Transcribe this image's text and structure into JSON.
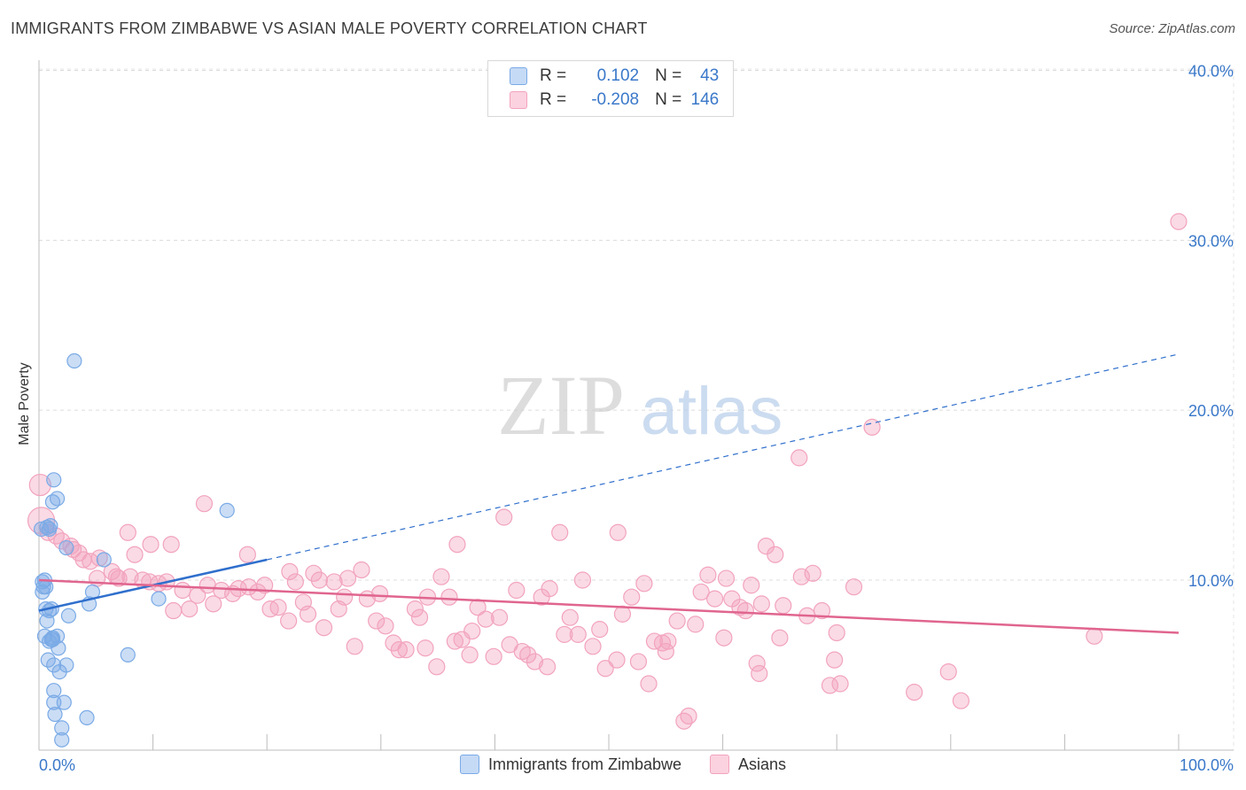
{
  "title": "IMMIGRANTS FROM ZIMBABWE VS ASIAN MALE POVERTY CORRELATION CHART",
  "source": "Source: ZipAtlas.com",
  "watermark": {
    "zip": "ZIP",
    "atlas": "atlas"
  },
  "legend": {
    "rows": [
      {
        "r_label": "R =",
        "r_value": "0.102",
        "n_label": "N =",
        "n_value": "43"
      },
      {
        "r_label": "R =",
        "r_value": "-0.208",
        "n_label": "N =",
        "n_value": "146"
      }
    ]
  },
  "chart_data": {
    "type": "scatter",
    "title": "IMMIGRANTS FROM ZIMBABWE VS ASIAN MALE POVERTY CORRELATION CHART",
    "xlabel": "",
    "ylabel": "Male Poverty",
    "xlim": [
      0,
      100
    ],
    "ylim": [
      0,
      42
    ],
    "x_tick_labels": [
      "0.0%",
      "100.0%"
    ],
    "y_ticks": [
      10,
      20,
      30,
      40
    ],
    "y_tick_labels": [
      "10.0%",
      "20.0%",
      "30.0%",
      "40.0%"
    ],
    "grid": true,
    "legend_position": "bottom",
    "colors": {
      "zimbabwe": "#7aaae6",
      "zimbabwe_line": "#2f6fcc",
      "asians": "#f2a3bd",
      "asians_line": "#e0658f",
      "axis_text": "#3a78c9"
    },
    "series": [
      {
        "name": "Immigrants from Zimbabwe",
        "trend": {
          "x0": 0,
          "y0": 8.2,
          "x1": 20,
          "y1": 11.2,
          "dashed_to_x": 100,
          "dashed_to_y": 23.3
        },
        "points": [
          [
            3.1,
            22.9
          ],
          [
            16.5,
            14.1
          ],
          [
            1.3,
            15.9
          ],
          [
            1.6,
            14.8
          ],
          [
            1.2,
            14.6
          ],
          [
            0.7,
            13.1
          ],
          [
            0.9,
            13.0
          ],
          [
            0.2,
            13.0
          ],
          [
            2.4,
            11.9
          ],
          [
            5.7,
            11.2
          ],
          [
            0.5,
            10.0
          ],
          [
            0.4,
            9.6
          ],
          [
            0.3,
            9.3
          ],
          [
            0.6,
            9.6
          ],
          [
            4.7,
            9.3
          ],
          [
            10.5,
            8.9
          ],
          [
            4.4,
            8.6
          ],
          [
            0.6,
            8.3
          ],
          [
            1.1,
            8.3
          ],
          [
            2.6,
            7.9
          ],
          [
            0.7,
            7.6
          ],
          [
            0.5,
            6.7
          ],
          [
            1.1,
            6.5
          ],
          [
            0.9,
            6.4
          ],
          [
            1.6,
            6.7
          ],
          [
            1.2,
            6.5
          ],
          [
            1.7,
            6.0
          ],
          [
            7.8,
            5.6
          ],
          [
            0.8,
            5.3
          ],
          [
            1.3,
            5.0
          ],
          [
            2.4,
            5.0
          ],
          [
            1.8,
            4.6
          ],
          [
            1.3,
            3.5
          ],
          [
            1.3,
            2.8
          ],
          [
            2.2,
            2.8
          ],
          [
            1.4,
            2.1
          ],
          [
            4.2,
            1.9
          ],
          [
            2.0,
            1.3
          ],
          [
            2.0,
            0.6
          ],
          [
            0.3,
            9.9
          ],
          [
            0.9,
            8.2
          ],
          [
            1.2,
            6.6
          ],
          [
            1.0,
            13.2
          ]
        ]
      },
      {
        "name": "Asians",
        "trend": {
          "x0": 0,
          "y0": 10.0,
          "x1": 100,
          "y1": 6.9
        },
        "points": [
          [
            100,
            31.1
          ],
          [
            73.1,
            19.0
          ],
          [
            66.7,
            17.2
          ],
          [
            0.1,
            15.6
          ],
          [
            0.2,
            13.5
          ],
          [
            14.5,
            14.5
          ],
          [
            40.8,
            13.7
          ],
          [
            0.8,
            12.8
          ],
          [
            1.5,
            12.6
          ],
          [
            7.8,
            12.8
          ],
          [
            2.0,
            12.3
          ],
          [
            2.8,
            12.0
          ],
          [
            11.6,
            12.1
          ],
          [
            45.7,
            12.8
          ],
          [
            50.8,
            12.8
          ],
          [
            36.7,
            12.1
          ],
          [
            63.8,
            12.0
          ],
          [
            64.6,
            11.5
          ],
          [
            3.5,
            11.6
          ],
          [
            3.9,
            11.2
          ],
          [
            4.5,
            11.1
          ],
          [
            5.3,
            11.3
          ],
          [
            6.4,
            10.5
          ],
          [
            8.4,
            11.5
          ],
          [
            5.1,
            10.1
          ],
          [
            7.0,
            10.1
          ],
          [
            8.0,
            10.2
          ],
          [
            9.1,
            10.0
          ],
          [
            9.7,
            9.9
          ],
          [
            10.5,
            9.8
          ],
          [
            11.2,
            9.9
          ],
          [
            12.6,
            9.4
          ],
          [
            11.8,
            8.2
          ],
          [
            13.2,
            8.3
          ],
          [
            14.8,
            9.7
          ],
          [
            16.0,
            9.4
          ],
          [
            15.3,
            8.6
          ],
          [
            17.0,
            9.2
          ],
          [
            17.5,
            9.5
          ],
          [
            18.4,
            9.6
          ],
          [
            19.2,
            9.3
          ],
          [
            19.8,
            9.7
          ],
          [
            20.3,
            8.3
          ],
          [
            21.0,
            8.4
          ],
          [
            21.9,
            7.6
          ],
          [
            22.5,
            9.9
          ],
          [
            23.2,
            8.7
          ],
          [
            23.6,
            8.0
          ],
          [
            24.1,
            10.4
          ],
          [
            24.6,
            10.0
          ],
          [
            25.0,
            7.2
          ],
          [
            25.9,
            9.9
          ],
          [
            26.3,
            8.3
          ],
          [
            27.1,
            10.1
          ],
          [
            27.7,
            6.1
          ],
          [
            28.3,
            10.6
          ],
          [
            28.8,
            8.9
          ],
          [
            29.6,
            7.6
          ],
          [
            30.4,
            7.3
          ],
          [
            31.1,
            6.3
          ],
          [
            31.6,
            5.9
          ],
          [
            32.2,
            5.9
          ],
          [
            33.0,
            8.3
          ],
          [
            33.4,
            7.8
          ],
          [
            34.1,
            9.0
          ],
          [
            34.9,
            4.9
          ],
          [
            35.3,
            10.2
          ],
          [
            36.0,
            9.0
          ],
          [
            36.5,
            6.4
          ],
          [
            37.1,
            6.5
          ],
          [
            37.8,
            5.6
          ],
          [
            38.5,
            8.4
          ],
          [
            39.2,
            7.7
          ],
          [
            39.9,
            5.5
          ],
          [
            40.4,
            7.8
          ],
          [
            41.3,
            6.2
          ],
          [
            42.4,
            5.8
          ],
          [
            42.9,
            5.6
          ],
          [
            43.5,
            5.2
          ],
          [
            44.1,
            9.0
          ],
          [
            44.6,
            4.9
          ],
          [
            44.8,
            9.5
          ],
          [
            46.1,
            6.8
          ],
          [
            46.6,
            7.8
          ],
          [
            47.3,
            6.8
          ],
          [
            48.6,
            6.1
          ],
          [
            49.2,
            7.1
          ],
          [
            49.7,
            4.8
          ],
          [
            50.7,
            5.3
          ],
          [
            51.2,
            8.0
          ],
          [
            52.0,
            9.0
          ],
          [
            52.6,
            5.2
          ],
          [
            53.5,
            3.9
          ],
          [
            54.0,
            6.4
          ],
          [
            54.7,
            6.3
          ],
          [
            55.2,
            6.4
          ],
          [
            56.0,
            7.6
          ],
          [
            56.6,
            1.7
          ],
          [
            57.0,
            2.0
          ],
          [
            58.1,
            9.3
          ],
          [
            58.7,
            10.3
          ],
          [
            59.3,
            8.9
          ],
          [
            60.3,
            10.1
          ],
          [
            60.8,
            8.9
          ],
          [
            61.5,
            8.4
          ],
          [
            62.0,
            8.2
          ],
          [
            63.4,
            8.6
          ],
          [
            65.0,
            6.6
          ],
          [
            65.3,
            8.5
          ],
          [
            66.9,
            10.2
          ],
          [
            67.9,
            10.4
          ],
          [
            68.7,
            8.2
          ],
          [
            69.4,
            3.8
          ],
          [
            69.8,
            5.3
          ],
          [
            70.0,
            6.9
          ],
          [
            70.3,
            3.9
          ],
          [
            60.1,
            6.6
          ],
          [
            63.0,
            5.1
          ],
          [
            63.2,
            4.5
          ],
          [
            71.5,
            9.6
          ],
          [
            76.8,
            3.4
          ],
          [
            80.9,
            2.9
          ],
          [
            79.8,
            4.6
          ],
          [
            92.6,
            6.7
          ],
          [
            55.0,
            5.8
          ],
          [
            3.0,
            11.8
          ],
          [
            6.8,
            10.2
          ],
          [
            9.8,
            12.1
          ],
          [
            13.9,
            9.1
          ],
          [
            18.3,
            11.5
          ],
          [
            22.0,
            10.5
          ],
          [
            26.8,
            9.0
          ],
          [
            29.9,
            9.2
          ],
          [
            33.9,
            6.0
          ],
          [
            38.0,
            7.0
          ],
          [
            41.9,
            9.4
          ],
          [
            47.7,
            10.0
          ],
          [
            53.1,
            9.8
          ],
          [
            57.6,
            7.4
          ],
          [
            62.5,
            9.7
          ],
          [
            67.4,
            7.9
          ]
        ]
      }
    ]
  }
}
